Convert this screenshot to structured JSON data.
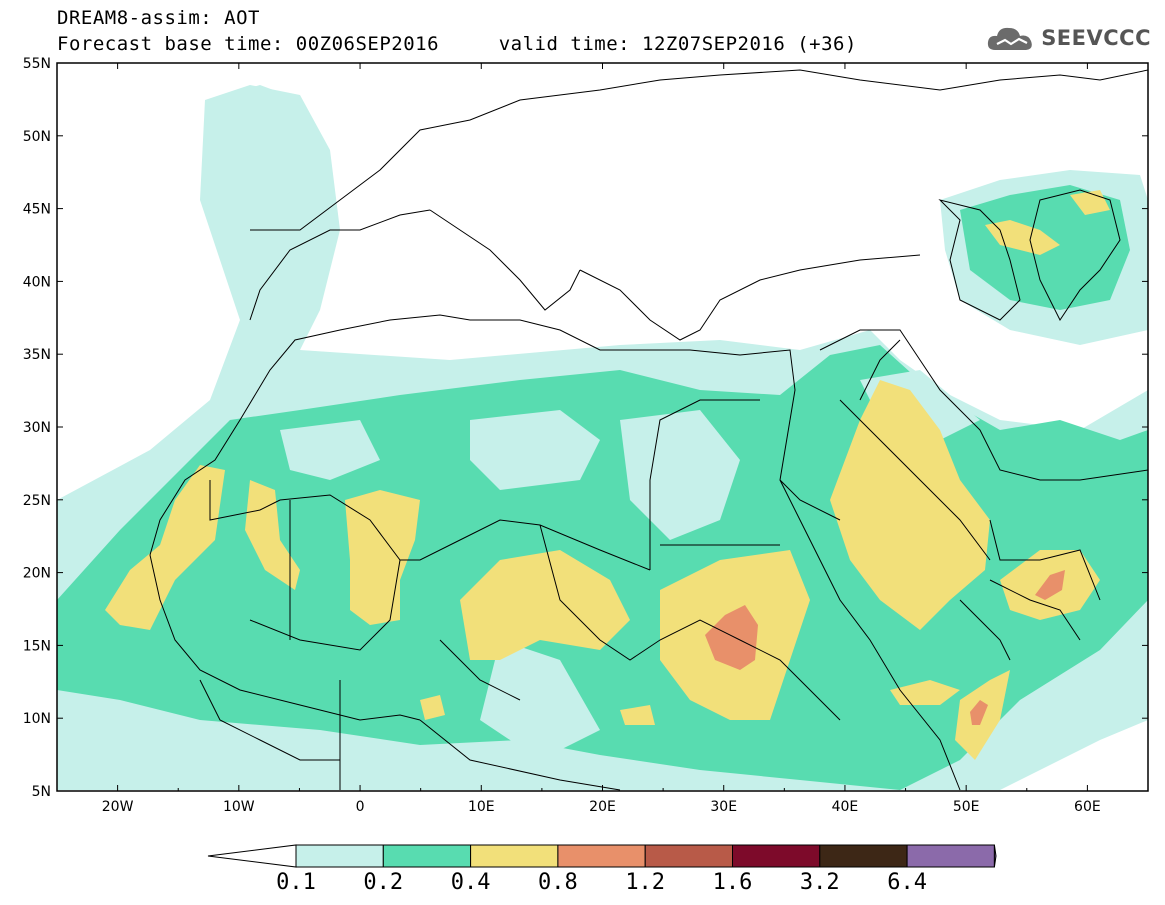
{
  "title": {
    "line1": "DREAM8-assim: AOT",
    "line2": "Forecast base time: 00Z06SEP2016     valid time: 12Z07SEP2016 (+36)"
  },
  "logo": {
    "text": "SEEVCCC",
    "icon": "cloud-icon"
  },
  "map": {
    "projection": "lat-lon",
    "lon_range": [
      -25,
      65
    ],
    "lat_range": [
      5,
      55
    ],
    "lat_ticks": [
      "5N",
      "10N",
      "15N",
      "20N",
      "25N",
      "30N",
      "35N",
      "40N",
      "45N",
      "50N",
      "55N"
    ],
    "lon_ticks": [
      "20W",
      "10W",
      "0",
      "10E",
      "20E",
      "30E",
      "40E",
      "50E",
      "60E"
    ],
    "field": "AOT (aerosol optical thickness)",
    "ocean_color": "#ffffff",
    "boundary_color": "#000000"
  },
  "colorbar": {
    "labels": [
      "0.1",
      "0.2",
      "0.4",
      "0.8",
      "1.2",
      "1.6",
      "3.2",
      "6.4"
    ],
    "colors": [
      "#ffffff",
      "#c6f0ea",
      "#58dcb0",
      "#f2e07a",
      "#e8906a",
      "#b85a48",
      "#7d0a2a",
      "#3d2716",
      "#8b6aaa"
    ]
  }
}
